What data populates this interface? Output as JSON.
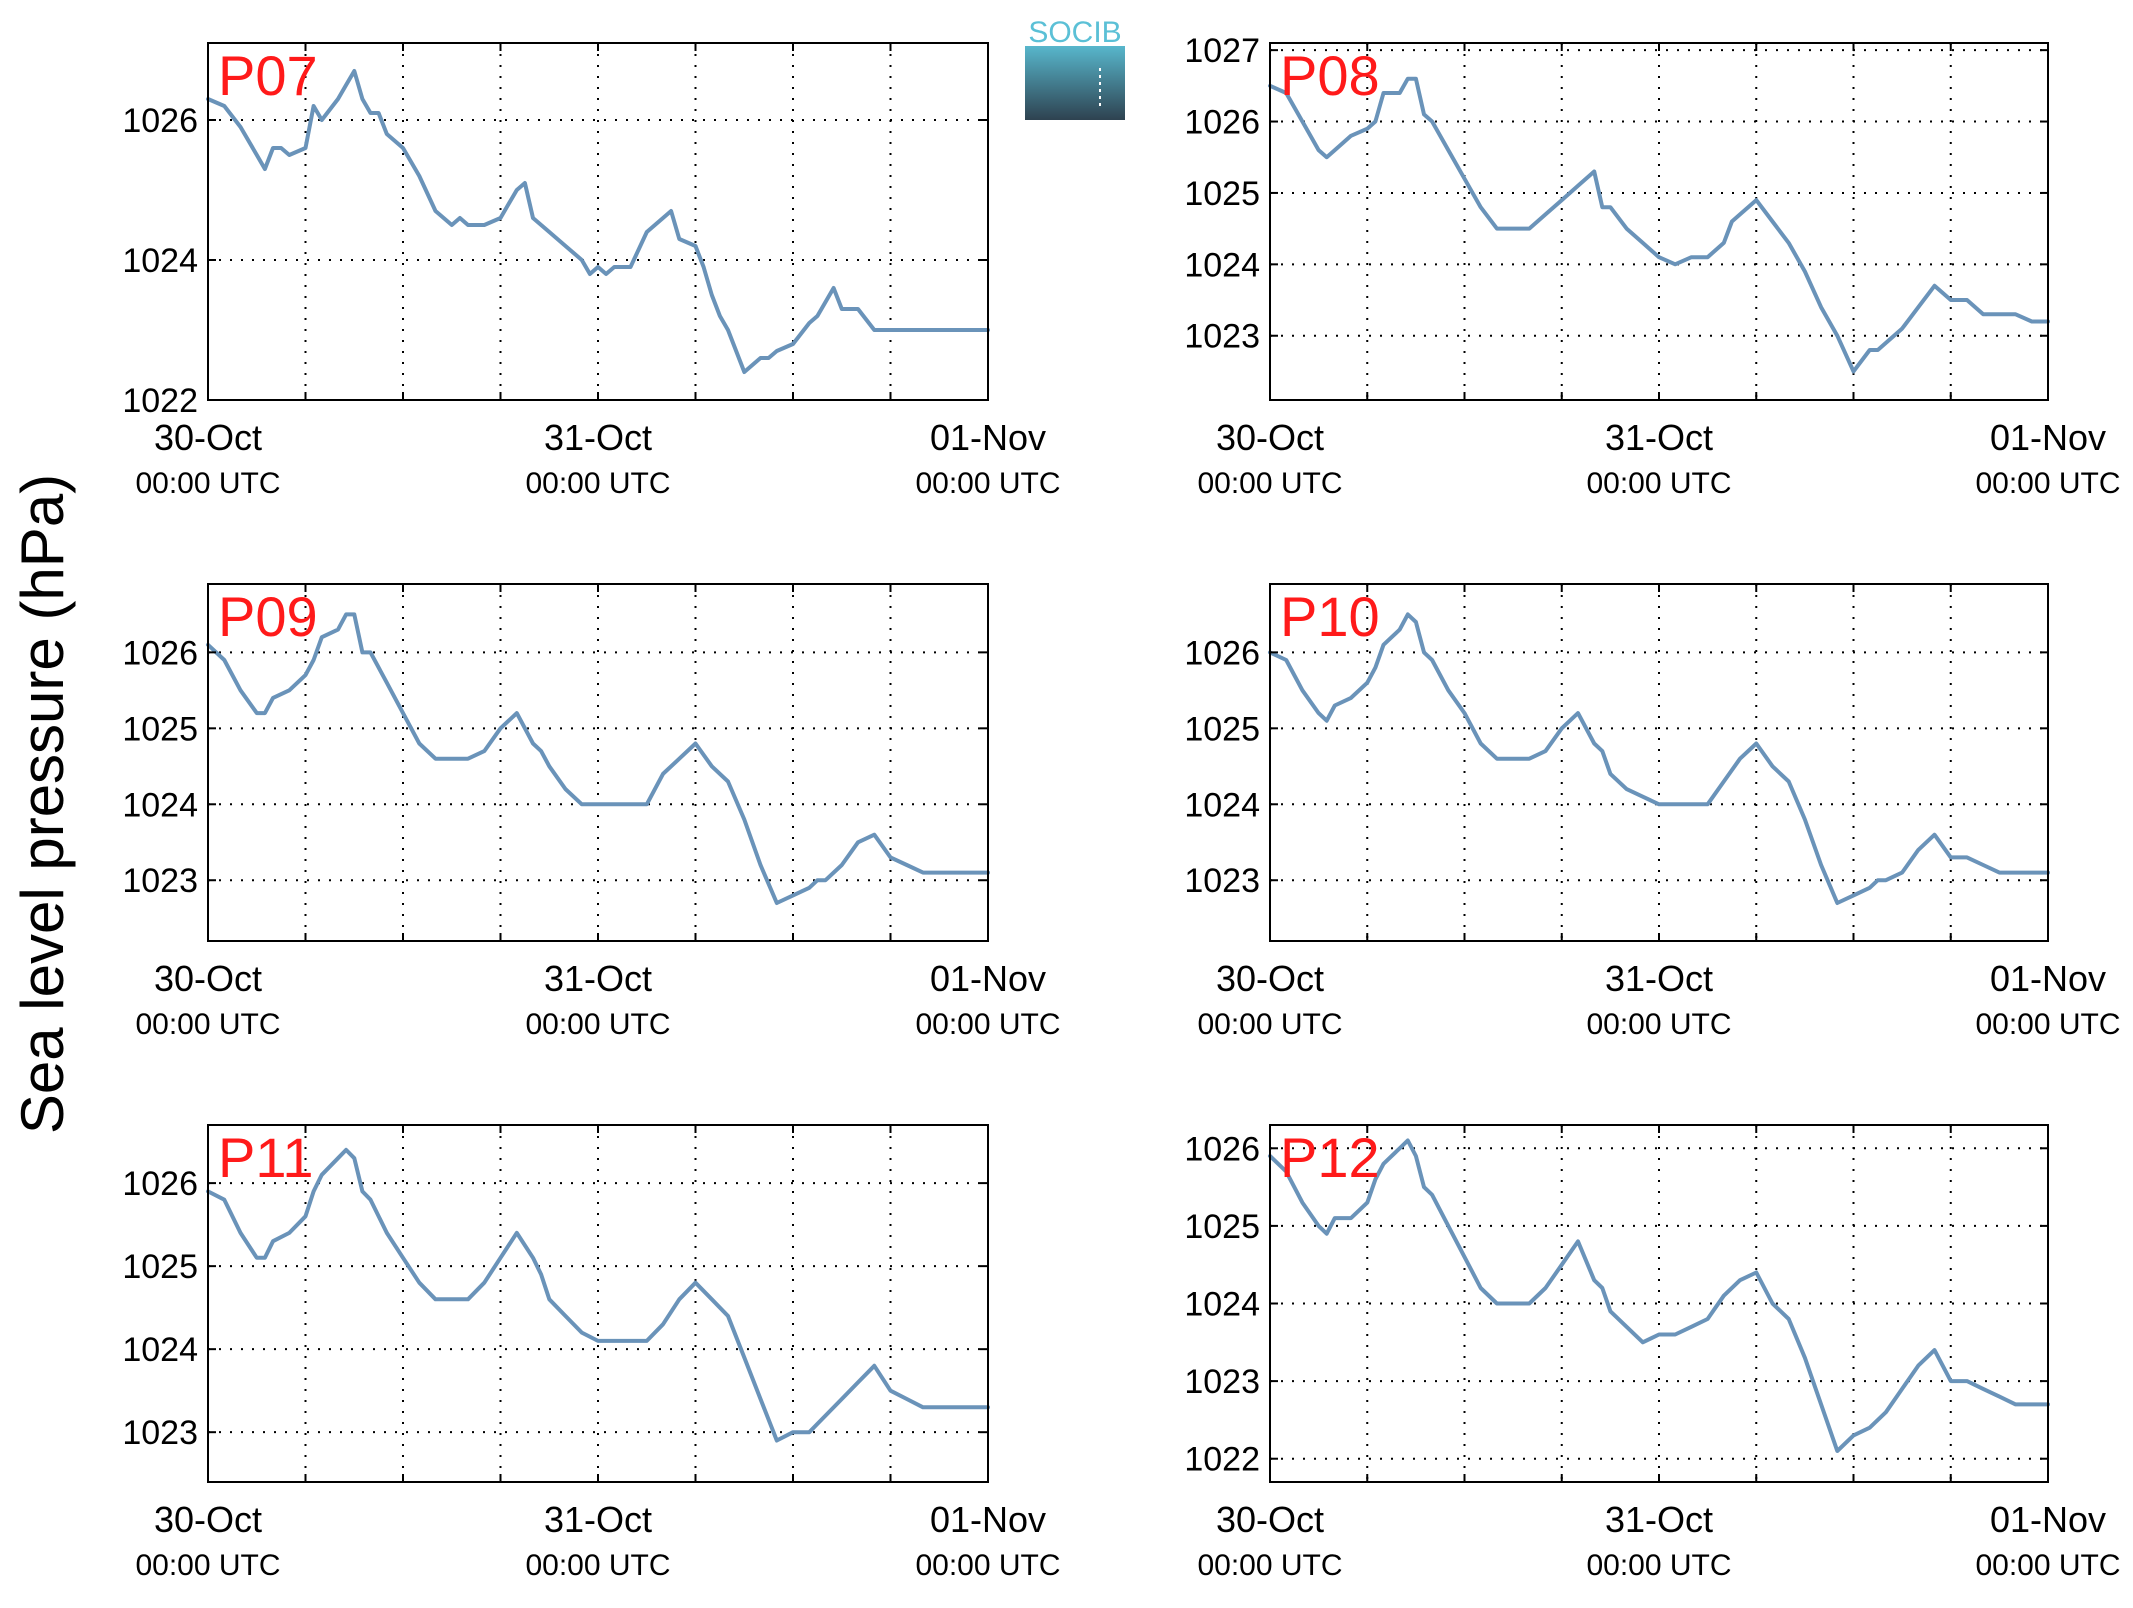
{
  "figure": {
    "ylabel": "Sea level pressure (hPa)",
    "logo_text": "SOCIB"
  },
  "colors": {
    "line": "#6a93b9",
    "title": "#ff1a1a",
    "axis": "#000000",
    "grid": "#000000",
    "logo_top": "#5bc0d6",
    "logo_bottom": "#2e4250"
  },
  "chart_data": [
    {
      "type": "line",
      "title": "P07",
      "xlim": [
        0,
        48
      ],
      "ylim": [
        1022,
        1027.1
      ],
      "yticks": [
        1022,
        1024,
        1026
      ],
      "xticks": [
        0,
        24,
        48
      ],
      "xticklabels": [
        [
          "30-Oct",
          "00:00 UTC"
        ],
        [
          "31-Oct",
          "00:00 UTC"
        ],
        [
          "01-Nov",
          "00:00 UTC"
        ]
      ],
      "grid": true,
      "series": [
        {
          "x": [
            0,
            1,
            2,
            3,
            3.5,
            4,
            4.5,
            5,
            6,
            6.5,
            7,
            8,
            8.5,
            9,
            9.5,
            10,
            10.5,
            11,
            12,
            13,
            14,
            15,
            15.5,
            16,
            16.5,
            17,
            18,
            18.5,
            19,
            19.5,
            20,
            21,
            22,
            23,
            23.5,
            24,
            24.5,
            25,
            26,
            27,
            28,
            28.5,
            29,
            30,
            30.5,
            31,
            31.5,
            32,
            33,
            34,
            34.5,
            35,
            36,
            37,
            37.5,
            38,
            38.5,
            39,
            40,
            41,
            42,
            43,
            44,
            45,
            45.5,
            46,
            46.5,
            47,
            47.5,
            48
          ],
          "y": [
            1026.3,
            1026.2,
            1025.9,
            1025.5,
            1025.3,
            1025.6,
            1025.6,
            1025.5,
            1025.6,
            1026.2,
            1026.0,
            1026.3,
            1026.5,
            1026.7,
            1026.3,
            1026.1,
            1026.1,
            1025.8,
            1025.6,
            1025.2,
            1024.7,
            1024.5,
            1024.6,
            1024.5,
            1024.5,
            1024.5,
            1024.6,
            1024.8,
            1025.0,
            1025.1,
            1024.6,
            1024.4,
            1024.2,
            1024.0,
            1023.8,
            1023.9,
            1023.8,
            1023.9,
            1023.9,
            1024.4,
            1024.6,
            1024.7,
            1024.3,
            1024.2,
            1023.9,
            1023.5,
            1023.2,
            1023.0,
            1022.4,
            1022.6,
            1022.6,
            1022.7,
            1022.8,
            1023.1,
            1023.2,
            1023.4,
            1023.6,
            1023.3,
            1023.3,
            1023.0,
            1023.0,
            1023.0,
            1023.0,
            1023.0,
            1023.0,
            1023.0,
            1023.0,
            1023.0,
            1023.0,
            1023.0
          ]
        }
      ]
    },
    {
      "type": "line",
      "title": "P08",
      "xlim": [
        0,
        48
      ],
      "ylim": [
        1022.1,
        1027.1
      ],
      "yticks": [
        1023,
        1024,
        1025,
        1026,
        1027
      ],
      "xticks": [
        0,
        24,
        48
      ],
      "xticklabels": [
        [
          "30-Oct",
          "00:00 UTC"
        ],
        [
          "31-Oct",
          "00:00 UTC"
        ],
        [
          "01-Nov",
          "00:00 UTC"
        ]
      ],
      "grid": true,
      "series": [
        {
          "x": [
            0,
            1,
            2,
            3,
            3.5,
            4,
            5,
            6,
            6.5,
            7,
            8,
            8.5,
            9,
            9.5,
            10,
            11,
            12,
            13,
            14,
            15,
            16,
            17,
            18,
            19,
            20,
            20.5,
            21,
            22,
            23,
            24,
            25,
            26,
            27,
            28,
            28.5,
            29,
            30,
            31,
            32,
            33,
            34,
            35,
            36,
            37,
            37.5,
            38,
            38.5,
            39,
            40,
            41,
            42,
            43,
            44,
            45,
            46,
            47,
            48
          ],
          "y": [
            1026.5,
            1026.4,
            1026.0,
            1025.6,
            1025.5,
            1025.6,
            1025.8,
            1025.9,
            1026.0,
            1026.4,
            1026.4,
            1026.6,
            1026.6,
            1026.1,
            1026.0,
            1025.6,
            1025.2,
            1024.8,
            1024.5,
            1024.5,
            1024.5,
            1024.7,
            1024.9,
            1025.1,
            1025.3,
            1024.8,
            1024.8,
            1024.5,
            1024.3,
            1024.1,
            1024.0,
            1024.1,
            1024.1,
            1024.3,
            1024.6,
            1024.7,
            1024.9,
            1024.6,
            1024.3,
            1023.9,
            1023.4,
            1023.0,
            1022.5,
            1022.8,
            1022.8,
            1022.9,
            1023.0,
            1023.1,
            1023.4,
            1023.7,
            1023.5,
            1023.5,
            1023.3,
            1023.3,
            1023.3,
            1023.2,
            1023.2
          ]
        }
      ]
    },
    {
      "type": "line",
      "title": "P09",
      "xlim": [
        0,
        48
      ],
      "ylim": [
        1022.2,
        1026.9
      ],
      "yticks": [
        1023,
        1024,
        1025,
        1026
      ],
      "xticks": [
        0,
        24,
        48
      ],
      "xticklabels": [
        [
          "30-Oct",
          "00:00 UTC"
        ],
        [
          "31-Oct",
          "00:00 UTC"
        ],
        [
          "01-Nov",
          "00:00 UTC"
        ]
      ],
      "grid": true,
      "series": [
        {
          "x": [
            0,
            1,
            2,
            3,
            3.5,
            4,
            5,
            6,
            6.5,
            7,
            8,
            8.5,
            9,
            9.5,
            10,
            11,
            12,
            13,
            14,
            15,
            16,
            17,
            18,
            19,
            20,
            20.5,
            21,
            22,
            23,
            24,
            25,
            26,
            27,
            28,
            29,
            30,
            31,
            32,
            33,
            34,
            35,
            36,
            37,
            37.5,
            38,
            39,
            40,
            41,
            42,
            43,
            44,
            45,
            46,
            47,
            48
          ],
          "y": [
            1026.1,
            1025.9,
            1025.5,
            1025.2,
            1025.2,
            1025.4,
            1025.5,
            1025.7,
            1025.9,
            1026.2,
            1026.3,
            1026.5,
            1026.5,
            1026.0,
            1026.0,
            1025.6,
            1025.2,
            1024.8,
            1024.6,
            1024.6,
            1024.6,
            1024.7,
            1025.0,
            1025.2,
            1024.8,
            1024.7,
            1024.5,
            1024.2,
            1024.0,
            1024.0,
            1024.0,
            1024.0,
            1024.0,
            1024.4,
            1024.6,
            1024.8,
            1024.5,
            1024.3,
            1023.8,
            1023.2,
            1022.7,
            1022.8,
            1022.9,
            1023.0,
            1023.0,
            1023.2,
            1023.5,
            1023.6,
            1023.3,
            1023.2,
            1023.1,
            1023.1,
            1023.1,
            1023.1,
            1023.1
          ]
        }
      ]
    },
    {
      "type": "line",
      "title": "P10",
      "xlim": [
        0,
        48
      ],
      "ylim": [
        1022.2,
        1026.9
      ],
      "yticks": [
        1023,
        1024,
        1025,
        1026
      ],
      "xticks": [
        0,
        24,
        48
      ],
      "xticklabels": [
        [
          "30-Oct",
          "00:00 UTC"
        ],
        [
          "31-Oct",
          "00:00 UTC"
        ],
        [
          "01-Nov",
          "00:00 UTC"
        ]
      ],
      "grid": true,
      "series": [
        {
          "x": [
            0,
            1,
            2,
            3,
            3.5,
            4,
            5,
            6,
            6.5,
            7,
            8,
            8.5,
            9,
            9.5,
            10,
            11,
            12,
            13,
            14,
            15,
            16,
            17,
            18,
            19,
            20,
            20.5,
            21,
            22,
            23,
            24,
            25,
            26,
            27,
            28,
            29,
            30,
            31,
            32,
            33,
            34,
            35,
            36,
            37,
            37.5,
            38,
            39,
            40,
            41,
            42,
            43,
            44,
            45,
            46,
            47,
            48
          ],
          "y": [
            1026.0,
            1025.9,
            1025.5,
            1025.2,
            1025.1,
            1025.3,
            1025.4,
            1025.6,
            1025.8,
            1026.1,
            1026.3,
            1026.5,
            1026.4,
            1026.0,
            1025.9,
            1025.5,
            1025.2,
            1024.8,
            1024.6,
            1024.6,
            1024.6,
            1024.7,
            1025.0,
            1025.2,
            1024.8,
            1024.7,
            1024.4,
            1024.2,
            1024.1,
            1024.0,
            1024.0,
            1024.0,
            1024.0,
            1024.3,
            1024.6,
            1024.8,
            1024.5,
            1024.3,
            1023.8,
            1023.2,
            1022.7,
            1022.8,
            1022.9,
            1023.0,
            1023.0,
            1023.1,
            1023.4,
            1023.6,
            1023.3,
            1023.3,
            1023.2,
            1023.1,
            1023.1,
            1023.1,
            1023.1
          ]
        }
      ]
    },
    {
      "type": "line",
      "title": "P11",
      "xlim": [
        0,
        48
      ],
      "ylim": [
        1022.4,
        1026.7
      ],
      "yticks": [
        1023,
        1024,
        1025,
        1026
      ],
      "xticks": [
        0,
        24,
        48
      ],
      "xticklabels": [
        [
          "30-Oct",
          "00:00 UTC"
        ],
        [
          "31-Oct",
          "00:00 UTC"
        ],
        [
          "01-Nov",
          "00:00 UTC"
        ]
      ],
      "grid": true,
      "series": [
        {
          "x": [
            0,
            1,
            2,
            3,
            3.5,
            4,
            5,
            6,
            6.5,
            7,
            8,
            8.5,
            9,
            9.5,
            10,
            11,
            12,
            13,
            14,
            15,
            16,
            17,
            18,
            19,
            20,
            20.5,
            21,
            22,
            23,
            24,
            25,
            26,
            27,
            28,
            29,
            30,
            31,
            32,
            33,
            34,
            35,
            36,
            37,
            37.5,
            38,
            39,
            40,
            41,
            42,
            43,
            44,
            45,
            46,
            47,
            48
          ],
          "y": [
            1025.9,
            1025.8,
            1025.4,
            1025.1,
            1025.1,
            1025.3,
            1025.4,
            1025.6,
            1025.9,
            1026.1,
            1026.3,
            1026.4,
            1026.3,
            1025.9,
            1025.8,
            1025.4,
            1025.1,
            1024.8,
            1024.6,
            1024.6,
            1024.6,
            1024.8,
            1025.1,
            1025.4,
            1025.1,
            1024.9,
            1024.6,
            1024.4,
            1024.2,
            1024.1,
            1024.1,
            1024.1,
            1024.1,
            1024.3,
            1024.6,
            1024.8,
            1024.6,
            1024.4,
            1023.9,
            1023.4,
            1022.9,
            1023.0,
            1023.0,
            1023.1,
            1023.2,
            1023.4,
            1023.6,
            1023.8,
            1023.5,
            1023.4,
            1023.3,
            1023.3,
            1023.3,
            1023.3,
            1023.3
          ]
        }
      ]
    },
    {
      "type": "line",
      "title": "P12",
      "xlim": [
        0,
        48
      ],
      "ylim": [
        1021.7,
        1026.3
      ],
      "yticks": [
        1022,
        1023,
        1024,
        1025,
        1026
      ],
      "xticks": [
        0,
        24,
        48
      ],
      "xticklabels": [
        [
          "30-Oct",
          "00:00 UTC"
        ],
        [
          "31-Oct",
          "00:00 UTC"
        ],
        [
          "01-Nov",
          "00:00 UTC"
        ]
      ],
      "grid": true,
      "series": [
        {
          "x": [
            0,
            1,
            2,
            3,
            3.5,
            4,
            5,
            6,
            6.5,
            7,
            8,
            8.5,
            9,
            9.5,
            10,
            11,
            12,
            13,
            14,
            15,
            16,
            17,
            18,
            19,
            20,
            20.5,
            21,
            22,
            23,
            24,
            25,
            26,
            27,
            28,
            29,
            30,
            31,
            32,
            33,
            34,
            35,
            36,
            37,
            37.5,
            38,
            39,
            40,
            41,
            42,
            43,
            44,
            45,
            46,
            47,
            48
          ],
          "y": [
            1025.9,
            1025.7,
            1025.3,
            1025.0,
            1024.9,
            1025.1,
            1025.1,
            1025.3,
            1025.6,
            1025.8,
            1026.0,
            1026.1,
            1025.9,
            1025.5,
            1025.4,
            1025.0,
            1024.6,
            1024.2,
            1024.0,
            1024.0,
            1024.0,
            1024.2,
            1024.5,
            1024.8,
            1024.3,
            1024.2,
            1023.9,
            1023.7,
            1023.5,
            1023.6,
            1023.6,
            1023.7,
            1023.8,
            1024.1,
            1024.3,
            1024.4,
            1024.0,
            1023.8,
            1023.3,
            1022.7,
            1022.1,
            1022.3,
            1022.4,
            1022.5,
            1022.6,
            1022.9,
            1023.2,
            1023.4,
            1023.0,
            1023.0,
            1022.9,
            1022.8,
            1022.7,
            1022.7,
            1022.7
          ]
        }
      ]
    }
  ]
}
